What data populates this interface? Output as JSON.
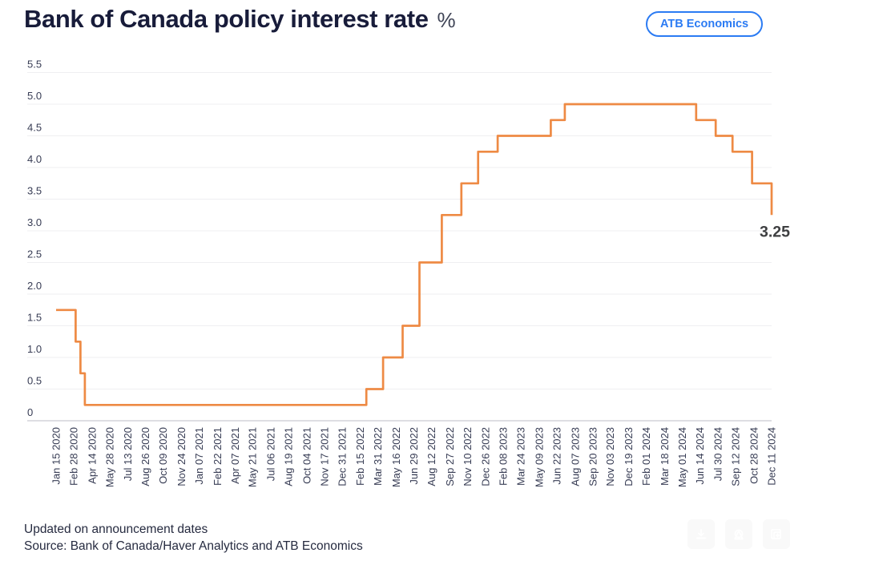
{
  "header": {
    "title": "Bank of Canada policy interest rate",
    "unit": "%",
    "badge": "ATB Economics"
  },
  "footer": {
    "note": "Updated on announcement dates",
    "source": "Source: Bank of Canada/Haver Analytics and ATB Economics"
  },
  "toolbar": {
    "buttons": [
      "download-icon",
      "share-icon",
      "embed-image-icon"
    ]
  },
  "colors": {
    "line": "#ee8a44",
    "title": "#181c3a",
    "badge_blue": "#2b7bf3",
    "grid": "#efeff1",
    "axis_line": "#d4d4da",
    "tick_text": "#373c54",
    "end_label": "#3e3f41"
  },
  "chart_data": {
    "type": "line",
    "step": true,
    "title": "Bank of Canada policy interest rate (%)",
    "xlabel": "",
    "ylabel": "%",
    "ylim": [
      0,
      5.5
    ],
    "grid": "horizontal-only",
    "legend": "none",
    "x_range": {
      "start": "2020-01-15",
      "end": "2024-12-11"
    },
    "y_ticks": [
      "5.5",
      "5.0",
      "4.5",
      "4.0",
      "3.5",
      "3.0",
      "2.5",
      "2.0",
      "1.5",
      "1.0",
      "0.5",
      "0"
    ],
    "x_tick_labels": [
      "Jan 15 2020",
      "Feb 28 2020",
      "Apr 14 2020",
      "May 28 2020",
      "Jul 13 2020",
      "Aug 26 2020",
      "Oct 09 2020",
      "Nov 24 2020",
      "Jan 07 2021",
      "Feb 22 2021",
      "Apr 07 2021",
      "May 21 2021",
      "Jul 06 2021",
      "Aug 19 2021",
      "Oct 04 2021",
      "Nov 17 2021",
      "Dec 31 2021",
      "Feb 15 2022",
      "Mar 31 2022",
      "May 16 2022",
      "Jun 29 2022",
      "Aug 12 2022",
      "Sep 27 2022",
      "Nov 10 2022",
      "Dec 26 2022",
      "Feb 08 2023",
      "Mar 24 2023",
      "May 09 2023",
      "Jun 22 2023",
      "Aug 07 2023",
      "Sep 20 2023",
      "Nov 03 2023",
      "Dec 19 2023",
      "Feb 01 2024",
      "Mar 18 2024",
      "May 01 2024",
      "Jun 14 2024",
      "Jul 30 2024",
      "Sep 12 2024",
      "Oct 28 2024",
      "Dec 11 2024"
    ],
    "series": [
      {
        "name": "Policy interest rate",
        "points": [
          {
            "date": "2020-01-15",
            "value": 1.75
          },
          {
            "date": "2020-03-04",
            "value": 1.25
          },
          {
            "date": "2020-03-16",
            "value": 0.75
          },
          {
            "date": "2020-03-27",
            "value": 0.25
          },
          {
            "date": "2022-03-02",
            "value": 0.5
          },
          {
            "date": "2022-04-13",
            "value": 1.0
          },
          {
            "date": "2022-06-01",
            "value": 1.5
          },
          {
            "date": "2022-07-13",
            "value": 2.5
          },
          {
            "date": "2022-09-07",
            "value": 3.25
          },
          {
            "date": "2022-10-26",
            "value": 3.75
          },
          {
            "date": "2022-12-07",
            "value": 4.25
          },
          {
            "date": "2023-01-25",
            "value": 4.5
          },
          {
            "date": "2023-06-07",
            "value": 4.75
          },
          {
            "date": "2023-07-12",
            "value": 5.0
          },
          {
            "date": "2024-06-05",
            "value": 4.75
          },
          {
            "date": "2024-07-24",
            "value": 4.5
          },
          {
            "date": "2024-09-04",
            "value": 4.25
          },
          {
            "date": "2024-10-23",
            "value": 3.75
          },
          {
            "date": "2024-12-11",
            "value": 3.25
          }
        ]
      }
    ],
    "end_label": "3.25"
  }
}
